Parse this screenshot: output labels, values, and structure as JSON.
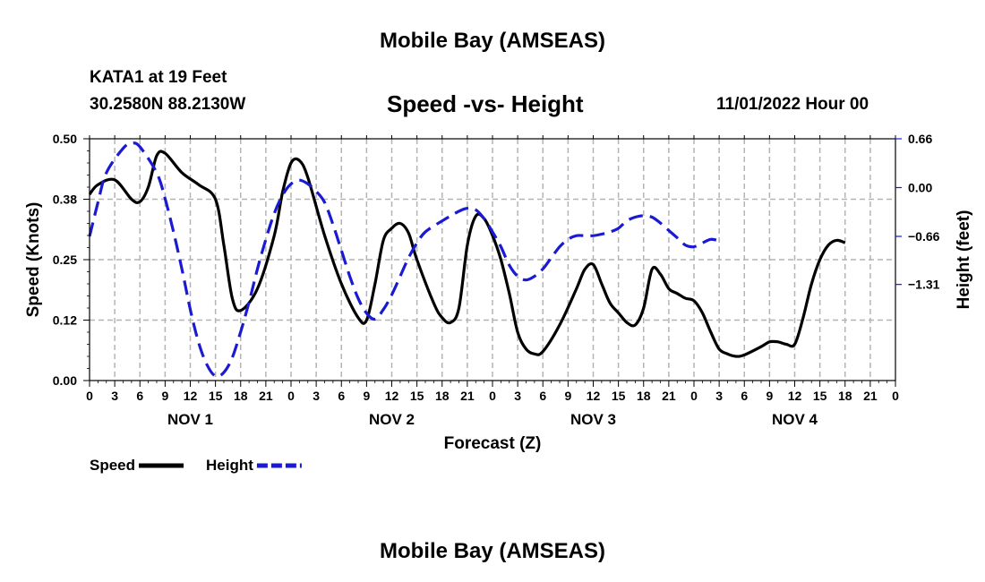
{
  "header": {
    "title": "Mobile Bay (AMSEAS)",
    "station": "KATA1 at 19 Feet",
    "coords": "30.2580N  88.2130W",
    "subtitle": "Speed -vs- Height",
    "datetime": "11/01/2022 Hour 00"
  },
  "footer": {
    "title": "Mobile Bay (AMSEAS)"
  },
  "chart_data": {
    "type": "line",
    "xlabel": "Forecast (Z)",
    "ylabel_left": "Speed (Knots)",
    "ylabel_right": "Height (feet)",
    "x_range_hours": [
      0,
      96
    ],
    "xtick_hours": [
      0,
      3,
      6,
      9,
      12,
      15,
      18,
      21,
      24,
      27,
      30,
      33,
      36,
      39,
      42,
      45,
      48,
      51,
      54,
      57,
      60,
      63,
      66,
      69,
      72,
      75,
      78,
      81,
      84,
      87,
      90,
      93,
      96
    ],
    "xtick_labels": [
      "0",
      "3",
      "6",
      "9",
      "12",
      "15",
      "18",
      "21",
      "0",
      "3",
      "6",
      "9",
      "12",
      "15",
      "18",
      "21",
      "0",
      "3",
      "6",
      "9",
      "12",
      "15",
      "18",
      "21",
      "0",
      "3",
      "6",
      "9",
      "12",
      "15",
      "18",
      "21",
      "0"
    ],
    "day_labels": [
      {
        "label": "NOV 1",
        "hour": 12
      },
      {
        "label": "NOV 2",
        "hour": 36
      },
      {
        "label": "NOV 3",
        "hour": 60
      },
      {
        "label": "NOV 4",
        "hour": 84
      }
    ],
    "left_axis": {
      "ylim": [
        0,
        0.5
      ],
      "ticks": [
        0,
        0.125,
        0.25,
        0.375,
        0.5
      ],
      "tick_labels": [
        "0.00",
        "0.12",
        "0.25",
        "0.38",
        "0.50"
      ]
    },
    "right_axis": {
      "ylim": [
        -2.61,
        0.66
      ],
      "ticks": [
        0.66,
        0.0,
        -0.66,
        -1.31
      ],
      "tick_labels": [
        "0.66",
        "0.00",
        "−0.66",
        "−1.31"
      ]
    },
    "series": [
      {
        "name": "Speed",
        "axis": "left",
        "color": "#000000",
        "style": "solid",
        "points": [
          [
            0,
            0.385
          ],
          [
            1,
            0.405
          ],
          [
            3,
            0.415
          ],
          [
            5,
            0.375
          ],
          [
            6,
            0.37
          ],
          [
            7,
            0.4
          ],
          [
            8,
            0.465
          ],
          [
            9,
            0.47
          ],
          [
            11,
            0.43
          ],
          [
            13,
            0.405
          ],
          [
            15,
            0.375
          ],
          [
            16,
            0.28
          ],
          [
            17,
            0.17
          ],
          [
            18,
            0.145
          ],
          [
            20,
            0.19
          ],
          [
            22,
            0.3
          ],
          [
            23,
            0.39
          ],
          [
            24,
            0.45
          ],
          [
            25,
            0.455
          ],
          [
            26,
            0.42
          ],
          [
            28,
            0.3
          ],
          [
            30,
            0.2
          ],
          [
            32,
            0.13
          ],
          [
            33,
            0.125
          ],
          [
            34,
            0.2
          ],
          [
            35,
            0.29
          ],
          [
            36,
            0.315
          ],
          [
            37,
            0.325
          ],
          [
            38,
            0.305
          ],
          [
            39,
            0.25
          ],
          [
            41,
            0.16
          ],
          [
            42,
            0.13
          ],
          [
            43,
            0.12
          ],
          [
            44,
            0.15
          ],
          [
            45,
            0.28
          ],
          [
            46,
            0.34
          ],
          [
            47,
            0.335
          ],
          [
            48,
            0.3
          ],
          [
            49,
            0.25
          ],
          [
            50,
            0.18
          ],
          [
            51,
            0.1
          ],
          [
            52,
            0.065
          ],
          [
            53,
            0.055
          ],
          [
            54,
            0.06
          ],
          [
            56,
            0.115
          ],
          [
            58,
            0.19
          ],
          [
            59,
            0.23
          ],
          [
            60,
            0.24
          ],
          [
            61,
            0.2
          ],
          [
            62,
            0.16
          ],
          [
            63,
            0.14
          ],
          [
            64,
            0.12
          ],
          [
            65,
            0.115
          ],
          [
            66,
            0.15
          ],
          [
            67,
            0.23
          ],
          [
            68,
            0.22
          ],
          [
            69,
            0.19
          ],
          [
            70,
            0.18
          ],
          [
            71,
            0.17
          ],
          [
            72,
            0.165
          ],
          [
            73,
            0.14
          ],
          [
            74,
            0.1
          ],
          [
            75,
            0.065
          ],
          [
            76,
            0.055
          ],
          [
            77,
            0.05
          ],
          [
            78,
            0.053
          ],
          [
            80,
            0.07
          ],
          [
            81,
            0.08
          ],
          [
            82,
            0.08
          ],
          [
            83,
            0.075
          ],
          [
            84,
            0.075
          ],
          [
            85,
            0.13
          ],
          [
            86,
            0.2
          ],
          [
            87,
            0.25
          ],
          [
            88,
            0.28
          ],
          [
            89,
            0.29
          ],
          [
            90,
            0.285
          ]
        ]
      },
      {
        "name": "Height",
        "axis": "right",
        "color": "#1a1ad2",
        "style": "dashed",
        "points": [
          [
            0,
            -0.66
          ],
          [
            1,
            -0.2
          ],
          [
            2,
            0.2
          ],
          [
            4,
            0.53
          ],
          [
            5,
            0.6
          ],
          [
            6,
            0.55
          ],
          [
            8,
            0.2
          ],
          [
            9,
            -0.15
          ],
          [
            10,
            -0.6
          ],
          [
            11,
            -1.1
          ],
          [
            12,
            -1.65
          ],
          [
            13,
            -2.1
          ],
          [
            14,
            -2.4
          ],
          [
            15,
            -2.55
          ],
          [
            16,
            -2.5
          ],
          [
            17,
            -2.3
          ],
          [
            18,
            -1.95
          ],
          [
            19,
            -1.55
          ],
          [
            20,
            -1.1
          ],
          [
            21,
            -0.7
          ],
          [
            22,
            -0.35
          ],
          [
            23,
            -0.1
          ],
          [
            24,
            0.05
          ],
          [
            25,
            0.1
          ],
          [
            26,
            0.05
          ],
          [
            27,
            -0.05
          ],
          [
            28,
            -0.2
          ],
          [
            29,
            -0.5
          ],
          [
            30,
            -0.85
          ],
          [
            31,
            -1.2
          ],
          [
            32,
            -1.5
          ],
          [
            33,
            -1.7
          ],
          [
            34,
            -1.78
          ],
          [
            35,
            -1.65
          ],
          [
            36,
            -1.45
          ],
          [
            37,
            -1.2
          ],
          [
            38,
            -0.95
          ],
          [
            39,
            -0.75
          ],
          [
            40,
            -0.6
          ],
          [
            42,
            -0.45
          ],
          [
            44,
            -0.32
          ],
          [
            45,
            -0.28
          ],
          [
            46,
            -0.3
          ],
          [
            47,
            -0.42
          ],
          [
            48,
            -0.6
          ],
          [
            49,
            -0.8
          ],
          [
            50,
            -1.05
          ],
          [
            51,
            -1.2
          ],
          [
            52,
            -1.25
          ],
          [
            53,
            -1.2
          ],
          [
            54,
            -1.1
          ],
          [
            55,
            -0.95
          ],
          [
            56,
            -0.8
          ],
          [
            57,
            -0.7
          ],
          [
            58,
            -0.65
          ],
          [
            59,
            -0.65
          ],
          [
            60,
            -0.65
          ],
          [
            61,
            -0.63
          ],
          [
            62,
            -0.6
          ],
          [
            63,
            -0.55
          ],
          [
            64,
            -0.45
          ],
          [
            65,
            -0.4
          ],
          [
            66,
            -0.38
          ],
          [
            67,
            -0.4
          ],
          [
            68,
            -0.48
          ],
          [
            69,
            -0.58
          ],
          [
            70,
            -0.68
          ],
          [
            71,
            -0.78
          ],
          [
            72,
            -0.8
          ],
          [
            73,
            -0.75
          ],
          [
            74,
            -0.7
          ],
          [
            75,
            -0.72
          ]
        ]
      }
    ],
    "legend": [
      {
        "label": "Speed",
        "color": "#000000",
        "style": "solid"
      },
      {
        "label": "Height",
        "color": "#1a1ad2",
        "style": "dashed"
      }
    ],
    "grid": true
  }
}
